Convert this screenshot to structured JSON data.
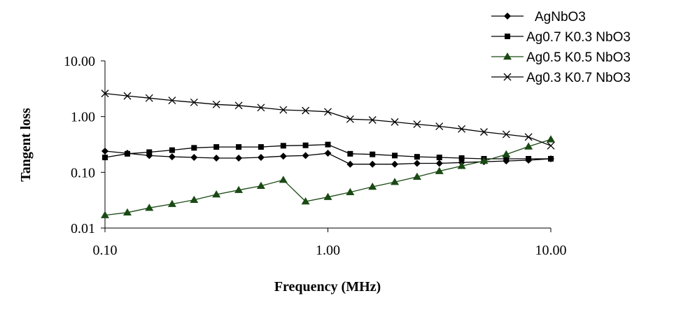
{
  "chart_data": {
    "type": "line",
    "scale": "log-log",
    "title": "",
    "xlabel": "Frequency (MHz)",
    "ylabel": "Tangent loss",
    "xlim": [
      0.1,
      10
    ],
    "ylim": [
      0.01,
      10
    ],
    "x_ticks": [
      0.1,
      1,
      10
    ],
    "x_tick_labels": [
      "0.10",
      "1.00",
      "10.00"
    ],
    "y_ticks": [
      0.01,
      0.1,
      1,
      10
    ],
    "y_tick_labels": [
      "0.01",
      "0.10",
      "1.00",
      "10.00"
    ],
    "grid": false,
    "legend_position": "top-right",
    "x": [
      0.1,
      0.126,
      0.158,
      0.2,
      0.251,
      0.316,
      0.398,
      0.501,
      0.631,
      0.794,
      1.0,
      1.259,
      1.585,
      1.995,
      2.512,
      3.162,
      3.981,
      5.012,
      6.31,
      7.943,
      10.0
    ],
    "series": [
      {
        "name": "AgNbO3",
        "marker": "diamond",
        "color": "#000000",
        "values": [
          0.24,
          0.22,
          0.2,
          0.19,
          0.185,
          0.18,
          0.18,
          0.185,
          0.195,
          0.2,
          0.22,
          0.14,
          0.14,
          0.14,
          0.145,
          0.145,
          0.15,
          0.155,
          0.16,
          0.165,
          0.175
        ]
      },
      {
        "name": "Ag0.7 K0.3 NbO3",
        "marker": "square",
        "color": "#000000",
        "values": [
          0.185,
          0.215,
          0.23,
          0.25,
          0.275,
          0.285,
          0.285,
          0.285,
          0.3,
          0.305,
          0.315,
          0.215,
          0.21,
          0.2,
          0.19,
          0.185,
          0.18,
          0.175,
          0.175,
          0.175,
          0.175
        ]
      },
      {
        "name": "Ag0.5 K0.5 NbO3",
        "marker": "triangle",
        "color": "#1a4a14",
        "values": [
          0.017,
          0.019,
          0.023,
          0.027,
          0.032,
          0.04,
          0.048,
          0.057,
          0.073,
          0.03,
          0.036,
          0.044,
          0.055,
          0.067,
          0.083,
          0.105,
          0.13,
          0.16,
          0.21,
          0.29,
          0.39
        ]
      },
      {
        "name": "Ag0.3 K0.7 NbO3",
        "marker": "x",
        "color": "#000000",
        "values": [
          2.6,
          2.35,
          2.15,
          1.95,
          1.8,
          1.65,
          1.58,
          1.45,
          1.32,
          1.28,
          1.22,
          0.9,
          0.87,
          0.8,
          0.73,
          0.67,
          0.6,
          0.53,
          0.48,
          0.43,
          0.3
        ]
      }
    ]
  }
}
